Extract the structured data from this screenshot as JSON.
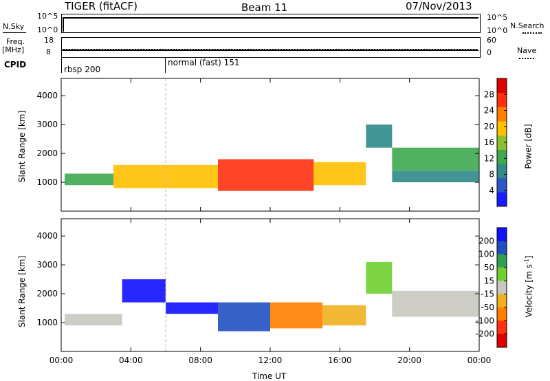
{
  "header": {
    "radar": "TIGER (fitACF)",
    "beam": "Beam 11",
    "date": "07/Nov/2013"
  },
  "top_panels": {
    "nsky_label": "N.Sky",
    "nsky_ticks": [
      "10^5",
      "10^0"
    ],
    "nsearch_label": "N.Search",
    "nsearch_ticks": [
      "10^5",
      "10^0"
    ],
    "freq_label": "Freq.",
    "freq_unit": "[MHz]",
    "freq_ticks": [
      "18",
      "8"
    ],
    "nave_label": "Nave",
    "nave_ticks": [
      "60",
      "0"
    ],
    "cpid_label": "CPID",
    "cpid_modes": [
      {
        "label": "rbsp 200",
        "start_hour": 0
      },
      {
        "label": "normal (fast) 151",
        "start_hour": 6
      }
    ]
  },
  "chart_data": [
    {
      "type": "heatmap",
      "name": "power",
      "ylabel": "Slant Range [km]",
      "xlabel": "",
      "x_ticks": [
        "00:00",
        "04:00",
        "08:00",
        "12:00",
        "16:00",
        "20:00",
        "00:00"
      ],
      "y_ticks": [
        1000,
        2000,
        3000,
        4000
      ],
      "ylim": [
        0,
        4600
      ],
      "colorbar": {
        "label": "Power [dB]",
        "ticks": [
          4,
          8,
          12,
          16,
          20,
          24,
          28
        ],
        "range": [
          0,
          32
        ],
        "colors": [
          "#1a1aff",
          "#2b55c8",
          "#2f8a8a",
          "#3fa850",
          "#8fc030",
          "#ffc000",
          "#ff8000",
          "#ff3010",
          "#e00000"
        ]
      },
      "bands": [
        {
          "start_hour": 0.2,
          "end_hour": 3.0,
          "range_km": [
            900,
            1300
          ],
          "value": 12
        },
        {
          "start_hour": 3.0,
          "end_hour": 9.0,
          "range_km": [
            800,
            1600
          ],
          "value": 20
        },
        {
          "start_hour": 9.0,
          "end_hour": 14.5,
          "range_km": [
            700,
            1800
          ],
          "value": 28
        },
        {
          "start_hour": 14.5,
          "end_hour": 17.5,
          "range_km": [
            900,
            1700
          ],
          "value": 20
        },
        {
          "start_hour": 17.5,
          "end_hour": 19.0,
          "range_km": [
            2200,
            3000
          ],
          "value": 8
        },
        {
          "start_hour": 19.0,
          "end_hour": 24.0,
          "range_km": [
            1400,
            2200
          ],
          "value": 12
        },
        {
          "start_hour": 19.0,
          "end_hour": 24.0,
          "range_km": [
            1000,
            1400
          ],
          "value": 8
        }
      ]
    },
    {
      "type": "heatmap",
      "name": "velocity",
      "ylabel": "Slant Range [km]",
      "xlabel": "Time UT",
      "x_ticks": [
        "00:00",
        "04:00",
        "08:00",
        "12:00",
        "16:00",
        "20:00",
        "00:00"
      ],
      "y_ticks": [
        1000,
        2000,
        3000,
        4000
      ],
      "ylim": [
        0,
        4600
      ],
      "colorbar": {
        "label": "Velocity [m s^-1]",
        "ticks": [
          200,
          100,
          50,
          15,
          -15,
          -50,
          -100,
          -200
        ],
        "colors": [
          "#1010ff",
          "#2050c0",
          "#30a050",
          "#70d030",
          "#c8c8c0",
          "#f0b020",
          "#ff8000",
          "#ff3010",
          "#e00000"
        ]
      },
      "bands": [
        {
          "start_hour": 0.2,
          "end_hour": 3.5,
          "range_km": [
            900,
            1300
          ],
          "value": 0
        },
        {
          "start_hour": 3.5,
          "end_hour": 6.0,
          "range_km": [
            1700,
            2500
          ],
          "value": 200
        },
        {
          "start_hour": 6.0,
          "end_hour": 9.0,
          "range_km": [
            1300,
            1700
          ],
          "value": 200
        },
        {
          "start_hour": 9.0,
          "end_hour": 12.0,
          "range_km": [
            700,
            1700
          ],
          "value": 150
        },
        {
          "start_hour": 12.0,
          "end_hour": 15.0,
          "range_km": [
            800,
            1700
          ],
          "value": -60
        },
        {
          "start_hour": 15.0,
          "end_hour": 17.5,
          "range_km": [
            900,
            1600
          ],
          "value": -50
        },
        {
          "start_hour": 17.5,
          "end_hour": 19.0,
          "range_km": [
            2000,
            3100
          ],
          "value": 40
        },
        {
          "start_hour": 19.0,
          "end_hour": 24.0,
          "range_km": [
            1200,
            2100
          ],
          "value": 0
        }
      ]
    }
  ]
}
